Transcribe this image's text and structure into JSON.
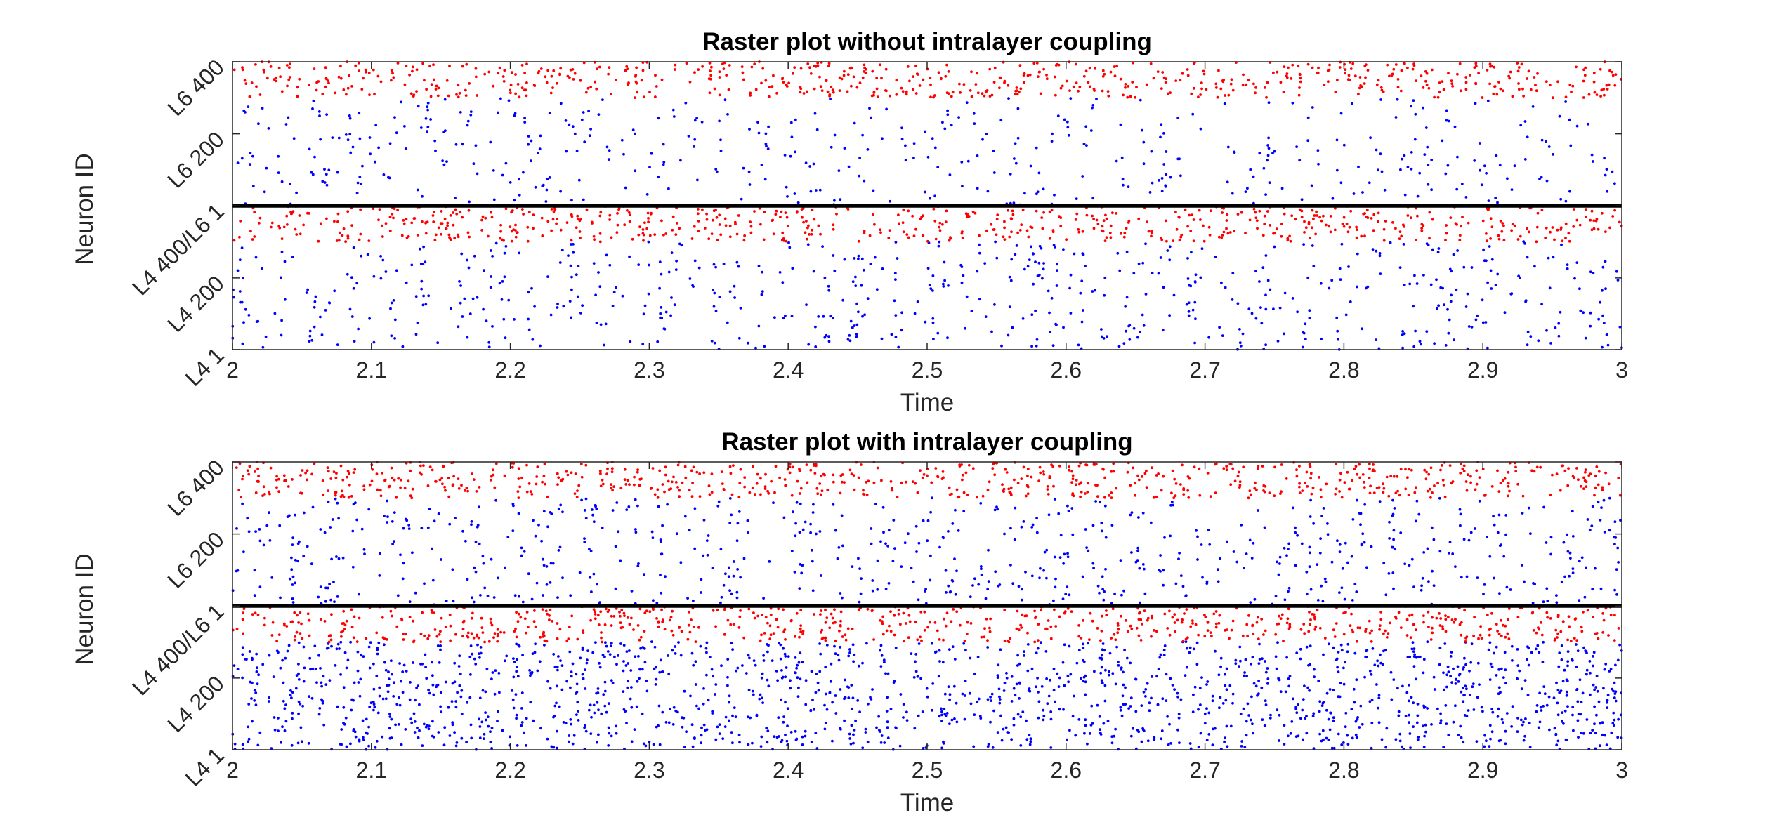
{
  "chart_data": [
    {
      "type": "scatter",
      "title": "Raster plot without intralayer coupling",
      "xlabel": "Time",
      "ylabel": "Neuron ID",
      "xlim": [
        2,
        3
      ],
      "ylim": [
        1,
        800
      ],
      "xticks": [
        2,
        2.1,
        2.2,
        2.3,
        2.4,
        2.5,
        2.6,
        2.7,
        2.8,
        2.9,
        3
      ],
      "xtick_labels": [
        "2",
        "2.1",
        "2.2",
        "2.3",
        "2.4",
        "2.5",
        "2.6",
        "2.7",
        "2.8",
        "2.9",
        "3"
      ],
      "yticks": [
        1,
        200,
        400,
        600,
        800
      ],
      "ytick_labels": [
        "L4 1",
        "L4 200",
        "L4 400/L6 1",
        "L6 200",
        "L6 400"
      ],
      "series": [
        {
          "color": "#0000ff",
          "neuron_range": [
            1,
            300
          ],
          "spike_density": 0.55,
          "spike_rhythm": "bursty"
        },
        {
          "color": "#ff0000",
          "neuron_range": [
            300,
            400
          ],
          "spike_density": 0.9,
          "spike_rhythm": "dense"
        },
        {
          "color": "#0000ff",
          "neuron_range": [
            400,
            700
          ],
          "spike_density": 0.4,
          "spike_rhythm": "bursty"
        },
        {
          "color": "#ff0000",
          "neuron_range": [
            700,
            800
          ],
          "spike_density": 0.9,
          "spike_rhythm": "dense"
        }
      ],
      "reference_lines": [
        {
          "color": "#000000",
          "y": 400
        }
      ],
      "grid": false,
      "legend": "none"
    },
    {
      "type": "scatter",
      "title": "Raster plot with intralayer coupling",
      "xlabel": "Time",
      "ylabel": "Neuron ID",
      "xlim": [
        2,
        3
      ],
      "ylim": [
        1,
        800
      ],
      "xticks": [
        2,
        2.1,
        2.2,
        2.3,
        2.4,
        2.5,
        2.6,
        2.7,
        2.8,
        2.9,
        3
      ],
      "xtick_labels": [
        "2",
        "2.1",
        "2.2",
        "2.3",
        "2.4",
        "2.5",
        "2.6",
        "2.7",
        "2.8",
        "2.9",
        "3"
      ],
      "yticks": [
        1,
        200,
        400,
        600,
        800
      ],
      "ytick_labels": [
        "L4 1",
        "L4 200",
        "L4 400/L6 1",
        "L6 200",
        "L6 400"
      ],
      "series": [
        {
          "color": "#0000ff",
          "neuron_range": [
            1,
            300
          ],
          "spike_density": 0.75,
          "spike_rhythm": "dense"
        },
        {
          "color": "#ff0000",
          "neuron_range": [
            300,
            400
          ],
          "spike_density": 1.0,
          "spike_rhythm": "dense"
        },
        {
          "color": "#0000ff",
          "neuron_range": [
            400,
            700
          ],
          "spike_density": 0.65,
          "spike_rhythm": "bursty"
        },
        {
          "color": "#ff0000",
          "neuron_range": [
            700,
            800
          ],
          "spike_density": 1.0,
          "spike_rhythm": "dense"
        }
      ],
      "reference_lines": [
        {
          "color": "#000000",
          "y": 400
        }
      ],
      "grid": false,
      "legend": "none"
    }
  ]
}
